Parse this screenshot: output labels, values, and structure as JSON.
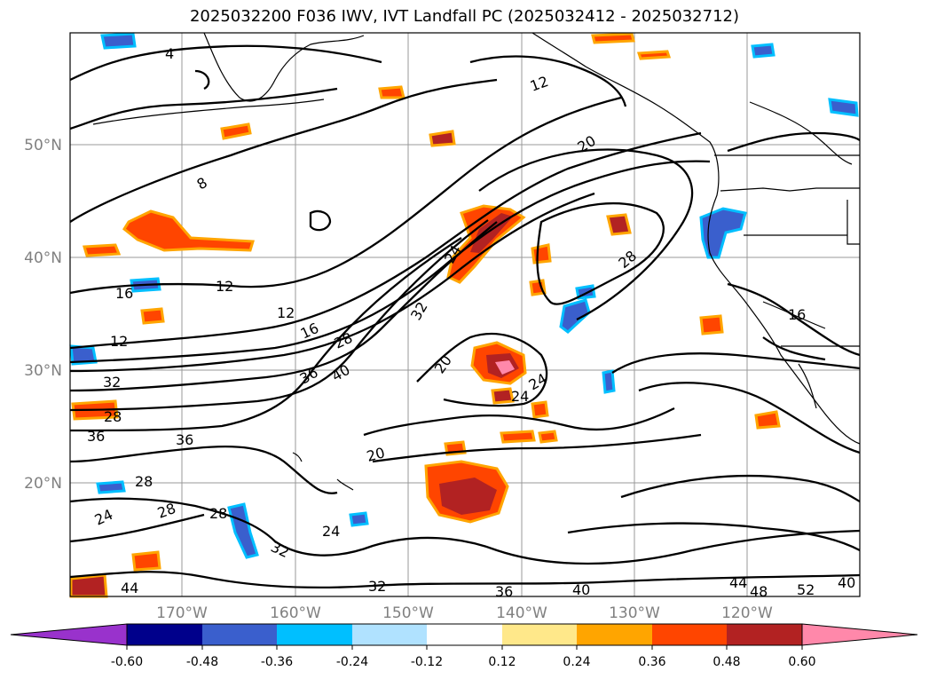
{
  "title": "2025032200 F036 IWV, IVT Landfall PC (2025032412 - 2025032712)",
  "lat_labels": [
    "50°N",
    "40°N",
    "30°N",
    "20°N"
  ],
  "lon_labels": [
    "170°W",
    "160°W",
    "150°W",
    "140°W",
    "130°W",
    "120°W"
  ],
  "contour_labels": [
    "4",
    "8",
    "12",
    "16",
    "20",
    "24",
    "28",
    "32",
    "36",
    "40",
    "44",
    "48",
    "52"
  ],
  "colorbar": {
    "ticks": [
      "-0.60",
      "-0.48",
      "-0.36",
      "-0.24",
      "-0.12",
      "0.12",
      "0.24",
      "0.36",
      "0.48",
      "0.60"
    ],
    "colors": [
      "#9932cc",
      "#00008b",
      "#3a5fcd",
      "#00bfff",
      "#b0e2ff",
      "#ffffff",
      "#ffe88a",
      "#ffa500",
      "#ff4500",
      "#b22222",
      "#ff88aa"
    ]
  }
}
